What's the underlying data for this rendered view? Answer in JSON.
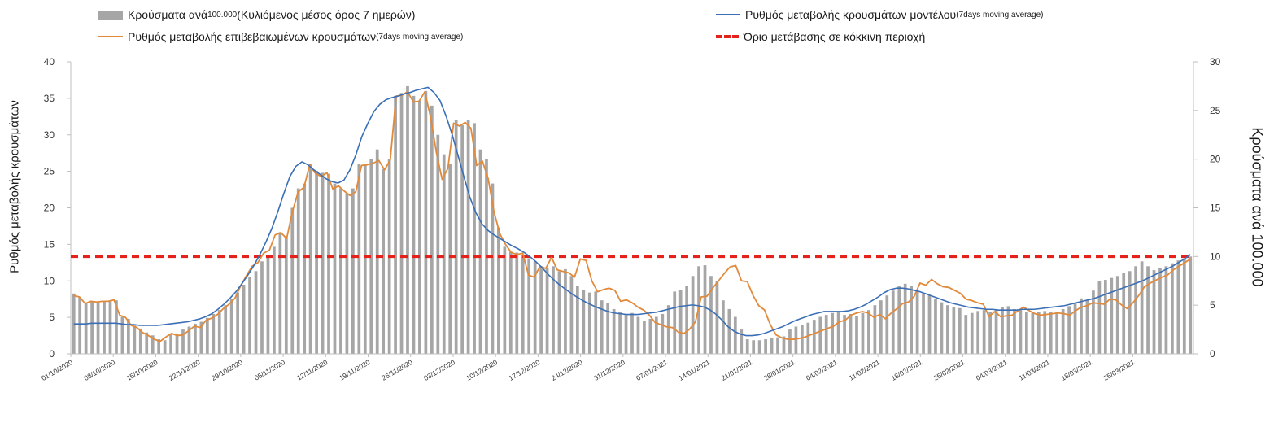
{
  "legend": {
    "bars_label": "Κρούσματα ανά ",
    "bars_small": "100.000",
    "bars_label2": " (Κυλιόμενος μέσος όρος 7 ημερών)",
    "model_label": "Ρυθμός μεταβολής κρουσμάτων μοντέλου ",
    "model_small": "(7days moving average)",
    "confirmed_label": "Ρυθμός μεταβολής επιβεβαιωμένων κρουσμάτων ",
    "confirmed_small": "(7days moving average)",
    "threshold_label": "Όριο μετάβασης σε κόκκινη περιοχή"
  },
  "colors": {
    "bars": "#a6a6a6",
    "confirmed": "#e28a3b",
    "model": "#3a6fb7",
    "threshold": "#e4211b"
  },
  "chart_data": {
    "type": "bar+line",
    "ylabel_left": "Ρυθμός μεταβολής κρουσμάτων",
    "ylabel_right": "Κρούσματα ανά 100.000",
    "ylim_left": [
      0,
      40
    ],
    "ylim_right": [
      0,
      30
    ],
    "yticks_left": [
      0,
      5,
      10,
      15,
      20,
      25,
      30,
      35,
      40
    ],
    "yticks_right": [
      0,
      5,
      10,
      15,
      20,
      25,
      30
    ],
    "xticks": [
      "01/10/2020",
      "08/10/2020",
      "15/10/2020",
      "22/10/2020",
      "29/10/2020",
      "05/11/2020",
      "12/11/2020",
      "19/11/2020",
      "26/11/2020",
      "03/12/2020",
      "10/12/2020",
      "17/12/2020",
      "24/12/2020",
      "31/12/2020",
      "07/01/2021",
      "14/01/2021",
      "21/01/2021",
      "28/01/2021",
      "04/02/2021",
      "11/02/2021",
      "18/02/2021",
      "25/02/2021",
      "04/03/2021",
      "11/03/2021",
      "18/03/2021",
      "25/03/2021"
    ],
    "threshold_right_axis": 10,
    "series": [
      {
        "name": "Κρούσματα ανά 100.000 (Κυλιόμενος μέσος όρος 7 ημερών)",
        "axis": "right",
        "kind": "bar",
        "values": [
          6.2,
          5.8,
          5.2,
          5.4,
          5.3,
          5.4,
          5.4,
          5.5,
          3.8,
          3.6,
          2.9,
          2.6,
          2.2,
          1.9,
          1.5,
          1.4,
          2.0,
          2.1,
          2.5,
          2.8,
          3.1,
          3.3,
          3.7,
          4.1,
          4.5,
          5.0,
          5.6,
          6.3,
          7.1,
          7.9,
          8.5,
          9.5,
          10.0,
          11.0,
          12.5,
          12.0,
          15.0,
          17.0,
          17.5,
          19.5,
          18.8,
          18.6,
          18.5,
          17.5,
          17.0,
          16.5,
          17.0,
          19.5,
          19.5,
          20.0,
          21.0,
          19.0,
          20.0,
          26.5,
          26.8,
          27.5,
          26.5,
          26.0,
          27.0,
          25.5,
          22.5,
          20.5,
          19.5,
          24.0,
          23.5,
          24.0,
          23.7,
          21.0,
          20.0,
          17.5,
          13.0,
          11.0,
          10.5,
          10.4,
          10.2,
          9.8,
          9.5,
          9.0,
          8.8,
          9.0,
          8.5,
          8.7,
          8.0,
          7.0,
          6.6,
          6.3,
          6.4,
          5.5,
          5.2,
          4.6,
          4.3,
          4.0,
          4.2,
          3.8,
          3.4,
          3.6,
          3.8,
          4.1,
          5.0,
          6.4,
          6.6,
          7.0,
          8.0,
          9.0,
          9.1,
          8.0,
          7.5,
          5.5,
          4.6,
          3.8,
          2.5,
          1.5,
          1.4,
          1.4,
          1.5,
          1.6,
          1.7,
          1.8,
          2.5,
          2.8,
          3.0,
          3.2,
          3.5,
          3.8,
          4.0,
          4.2,
          4.3,
          4.0,
          4.1,
          3.9,
          4.2,
          4.5,
          5.0,
          5.5,
          6.0,
          6.5,
          7.0,
          7.2,
          7.0,
          6.5,
          6.2,
          6.0,
          5.6,
          5.3,
          5.0,
          4.8,
          4.7,
          4.0,
          4.2,
          4.4,
          4.5,
          4.3,
          4.6,
          4.8,
          4.9,
          4.6,
          4.5,
          4.3,
          4.2,
          4.3,
          4.4,
          4.3,
          4.3,
          4.6,
          4.9,
          5.2,
          5.7,
          5.5,
          6.5,
          7.5,
          7.6,
          7.8,
          8.0,
          8.3,
          8.5,
          9.0,
          9.5,
          9.0,
          8.6,
          8.8,
          9.0,
          9.3,
          9.6,
          9.8,
          10.0
        ]
      },
      {
        "name": "Ρυθμός μεταβολής επιβεβαιωμένων κρουσμάτων (7days moving average)",
        "axis": "left",
        "kind": "line",
        "values": [
          8.0,
          7.8,
          6.9,
          7.2,
          7.1,
          7.2,
          7.2,
          7.4,
          5.3,
          5.0,
          3.9,
          3.6,
          2.9,
          2.5,
          2.0,
          1.7,
          2.3,
          2.8,
          2.5,
          2.6,
          3.2,
          3.8,
          3.6,
          4.6,
          4.9,
          5.4,
          6.2,
          6.8,
          7.6,
          9.3,
          10.7,
          12.0,
          12.5,
          13.8,
          14.2,
          16.3,
          16.6,
          15.8,
          19.5,
          22.2,
          22.8,
          25.9,
          24.7,
          24.3,
          24.8,
          22.6,
          23.0,
          22.3,
          21.7,
          22.2,
          25.8,
          25.9,
          26.1,
          26.5,
          25.2,
          26.6,
          35.3,
          35.4,
          35.9,
          34.5,
          34.6,
          35.9,
          32.4,
          27.6,
          23.9,
          25.4,
          31.6,
          31.2,
          31.7,
          30.9,
          25.8,
          26.4,
          24.0,
          19.5,
          16.5,
          15.0,
          13.9,
          13.6,
          13.8,
          10.8,
          10.5,
          12.0,
          11.7,
          13.2,
          11.5,
          11.3,
          11.1,
          10.5,
          13.0,
          12.8,
          10.0,
          8.5,
          8.8,
          9.0,
          8.7,
          7.2,
          7.4,
          7.0,
          6.4,
          6.0,
          5.3,
          4.3,
          4.0,
          3.7,
          3.6,
          3.0,
          2.8,
          3.4,
          4.4,
          7.8,
          7.9,
          9.0,
          10.0,
          11.0,
          11.9,
          12.1,
          10.0,
          9.9,
          8.0,
          6.6,
          6.0,
          4.0,
          2.6,
          2.2,
          2.0,
          2.0,
          2.1,
          2.3,
          2.6,
          2.9,
          3.2,
          3.5,
          3.8,
          4.4,
          4.6,
          5.3,
          5.6,
          5.8,
          5.6,
          5.0,
          5.4,
          4.8,
          5.6,
          6.2,
          6.9,
          7.1,
          7.9,
          9.7,
          9.4,
          10.2,
          9.6,
          9.2,
          9.1,
          8.7,
          8.3,
          7.5,
          7.3,
          7.0,
          6.8,
          5.1,
          5.8,
          5.1,
          5.2,
          5.3,
          5.9,
          6.4,
          5.9,
          5.5,
          5.3,
          5.4,
          5.5,
          5.6,
          5.5,
          5.3,
          5.9,
          6.4,
          6.6,
          7.0,
          6.9,
          6.8,
          7.5,
          7.4,
          6.7,
          6.2,
          7.0,
          8.0,
          9.2,
          9.7,
          10.1,
          10.5,
          10.8,
          11.5,
          12.0,
          12.5,
          13.0
        ]
      },
      {
        "name": "Ρυθμός μεταβολής κρουσμάτων μοντέλου (7days moving average)",
        "axis": "left",
        "kind": "line",
        "values": [
          4.1,
          4.1,
          4.1,
          4.2,
          4.2,
          4.2,
          4.2,
          4.2,
          4.1,
          4.0,
          4.0,
          3.9,
          3.9,
          3.9,
          3.9,
          4.0,
          4.1,
          4.2,
          4.3,
          4.4,
          4.6,
          4.8,
          5.1,
          5.5,
          6.1,
          6.8,
          7.6,
          8.5,
          9.6,
          10.8,
          12.1,
          13.6,
          15.3,
          17.2,
          19.5,
          22.0,
          24.3,
          25.7,
          26.3,
          25.9,
          25.2,
          24.6,
          24.0,
          23.6,
          23.4,
          23.8,
          25.2,
          27.3,
          29.8,
          31.6,
          33.2,
          34.2,
          34.8,
          35.1,
          35.3,
          35.6,
          35.8,
          36.1,
          36.3,
          36.5,
          35.8,
          34.7,
          32.6,
          30.1,
          27.2,
          24.2,
          21.4,
          19.3,
          17.8,
          16.9,
          16.3,
          15.8,
          15.3,
          14.8,
          14.4,
          13.9,
          13.3,
          12.6,
          11.8,
          10.9,
          10.1,
          9.4,
          8.8,
          8.2,
          7.7,
          7.2,
          6.8,
          6.4,
          6.1,
          5.8,
          5.6,
          5.5,
          5.4,
          5.4,
          5.4,
          5.5,
          5.6,
          5.7,
          5.9,
          6.1,
          6.3,
          6.5,
          6.6,
          6.7,
          6.6,
          6.4,
          6.0,
          5.4,
          4.6,
          3.7,
          3.1,
          2.7,
          2.5,
          2.5,
          2.6,
          2.8,
          3.1,
          3.4,
          3.7,
          4.1,
          4.5,
          4.8,
          5.1,
          5.4,
          5.6,
          5.8,
          5.8,
          5.8,
          5.8,
          5.9,
          6.1,
          6.4,
          6.8,
          7.3,
          7.8,
          8.4,
          8.8,
          9.0,
          9.0,
          8.9,
          8.7,
          8.5,
          8.2,
          7.9,
          7.6,
          7.3,
          7.0,
          6.8,
          6.6,
          6.4,
          6.3,
          6.2,
          6.1,
          6.1,
          6.0,
          6.0,
          6.0,
          6.0,
          6.1,
          6.1,
          6.1,
          6.2,
          6.3,
          6.4,
          6.5,
          6.6,
          6.8,
          7.0,
          7.2,
          7.4,
          7.6,
          7.9,
          8.2,
          8.5,
          8.8,
          9.1,
          9.4,
          9.7,
          10.0,
          10.4,
          10.8,
          11.2,
          11.6,
          12.0,
          12.5,
          13.0,
          13.6
        ]
      }
    ]
  }
}
